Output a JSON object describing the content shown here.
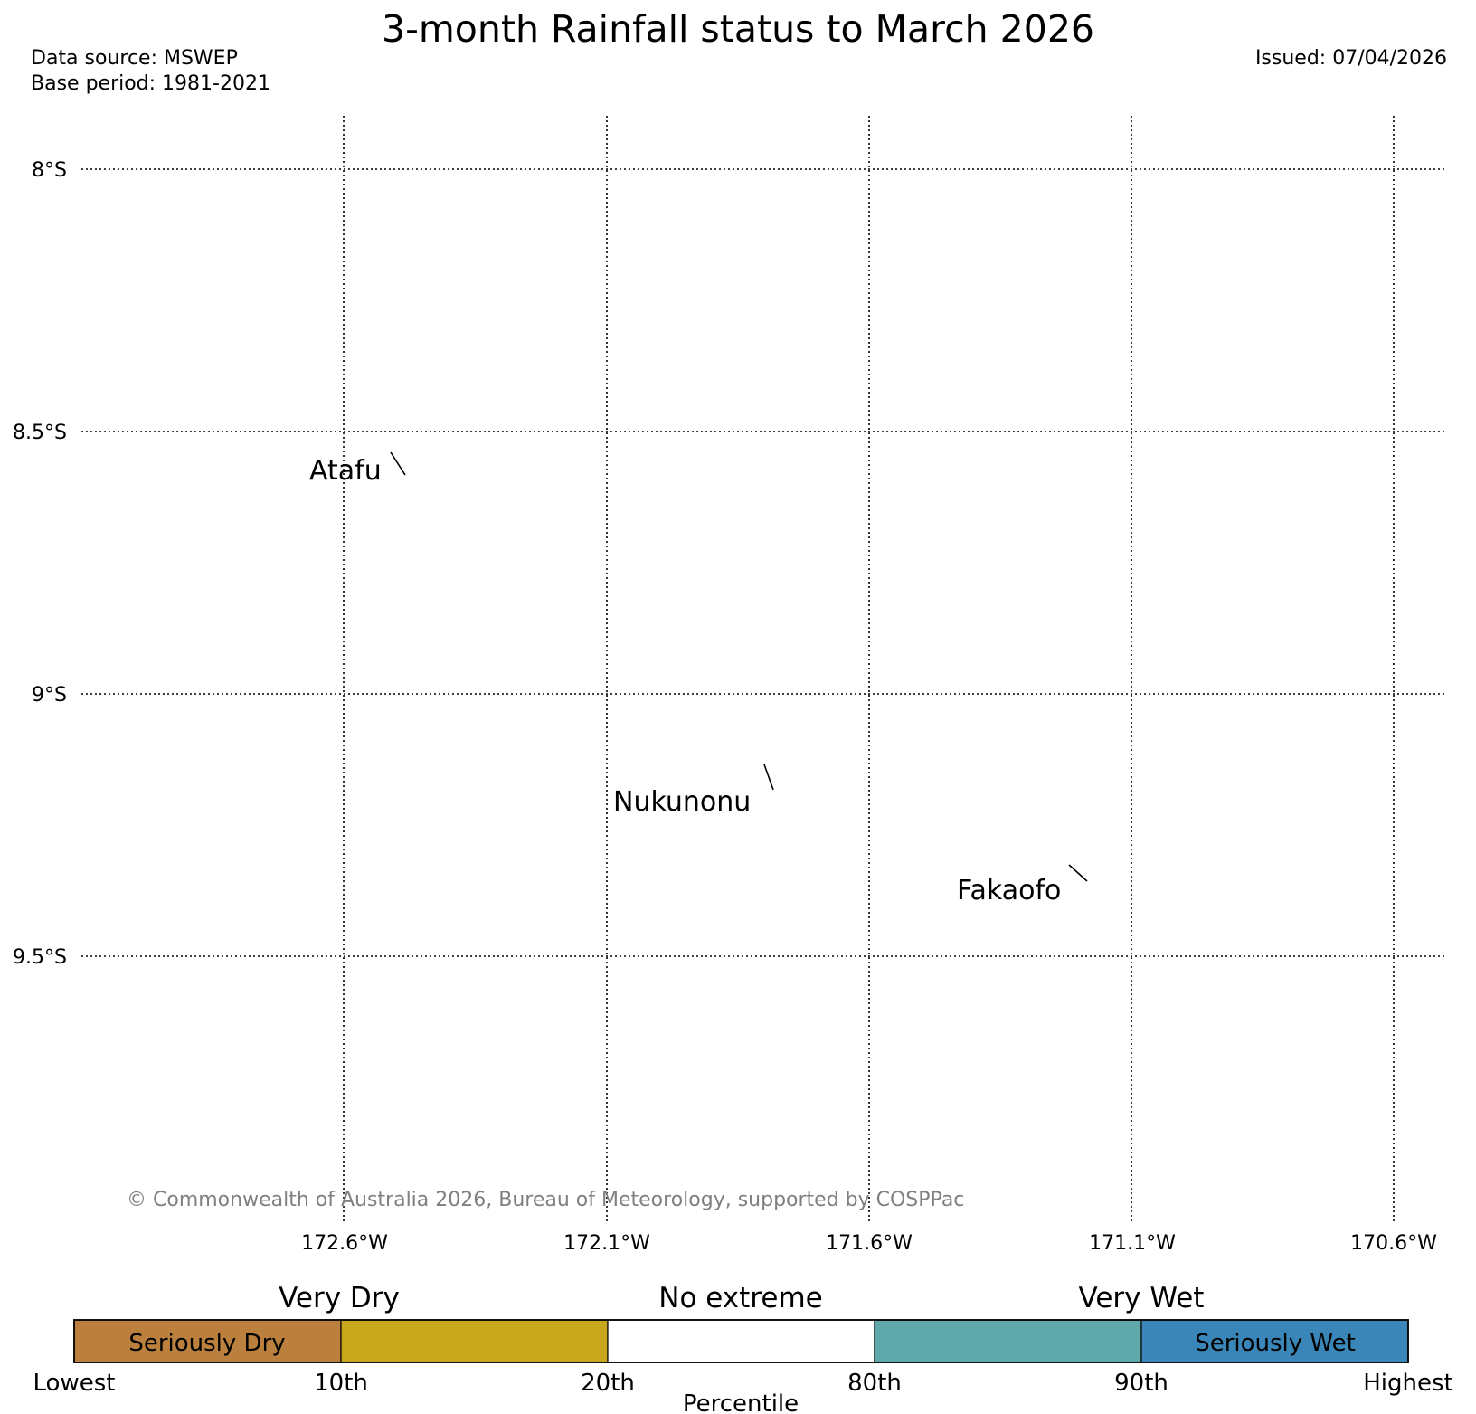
{
  "header": {
    "title": "3-month Rainfall status to March 2026",
    "data_source": "Data source: MSWEP",
    "base_period": "Base period: 1981-2021",
    "issued": "Issued: 07/04/2026"
  },
  "map": {
    "lat_labels": [
      "8°S",
      "8.5°S",
      "9°S",
      "9.5°S"
    ],
    "lon_labels": [
      "172.6°W",
      "172.1°W",
      "171.6°W",
      "171.1°W",
      "170.6°W"
    ],
    "places": [
      "Atafu",
      "Nukunonu",
      "Fakaofo"
    ],
    "credit": "© Commonwealth of Australia 2026, Bureau of Meteorology, supported by COSPPac"
  },
  "legend": {
    "categories": [
      "Very Dry",
      "No extreme",
      "Very Wet"
    ],
    "segments": [
      {
        "label": "Seriously Dry",
        "color": "#bb803d"
      },
      {
        "label": "",
        "color": "#c8a71d"
      },
      {
        "label": "",
        "color": "#ffffff"
      },
      {
        "label": "",
        "color": "#5fa9ad"
      },
      {
        "label": "Seriously Wet",
        "color": "#3a86b8"
      }
    ],
    "ticks": [
      "Lowest",
      "10th",
      "20th",
      "80th",
      "90th",
      "Highest"
    ],
    "axis_label": "Percentile"
  }
}
